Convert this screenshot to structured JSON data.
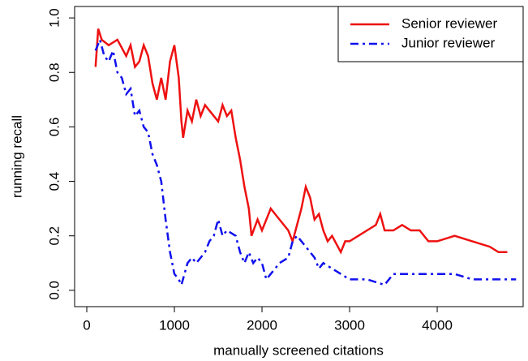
{
  "chart_data": {
    "type": "line",
    "xlabel": "manually screened citations",
    "ylabel": "running recall",
    "xlim": [
      -139,
      4981
    ],
    "ylim": [
      -0.06,
      1.042
    ],
    "xticks": [
      0,
      1000,
      2000,
      3000,
      4000
    ],
    "yticks": [
      {
        "value": 0,
        "label": "0.0"
      },
      0.2,
      0.4,
      0.6,
      0.8,
      {
        "value": 1,
        "label": "1.0"
      }
    ],
    "grid": false,
    "legend": "topright",
    "series": [
      {
        "name": "Senior reviewer",
        "color": "#ee1111",
        "dash": "solid",
        "x": [
          100,
          130,
          170,
          250,
          350,
          450,
          500,
          550,
          600,
          650,
          700,
          750,
          800,
          850,
          900,
          950,
          1000,
          1050,
          1080,
          1100,
          1150,
          1200,
          1250,
          1300,
          1350,
          1400,
          1500,
          1550,
          1600,
          1650,
          1700,
          1750,
          1800,
          1850,
          1880,
          1950,
          2000,
          2050,
          2100,
          2200,
          2300,
          2350,
          2400,
          2450,
          2500,
          2550,
          2600,
          2650,
          2700,
          2750,
          2800,
          2900,
          2950,
          3000,
          3100,
          3200,
          3300,
          3350,
          3400,
          3500,
          3600,
          3700,
          3800,
          3900,
          4000,
          4200,
          4400,
          4600,
          4700,
          4800
        ],
        "values": [
          0.82,
          0.96,
          0.92,
          0.9,
          0.92,
          0.86,
          0.9,
          0.82,
          0.84,
          0.9,
          0.86,
          0.76,
          0.7,
          0.78,
          0.7,
          0.84,
          0.9,
          0.78,
          0.62,
          0.56,
          0.66,
          0.62,
          0.7,
          0.64,
          0.68,
          0.66,
          0.62,
          0.68,
          0.64,
          0.66,
          0.56,
          0.48,
          0.38,
          0.3,
          0.2,
          0.26,
          0.22,
          0.26,
          0.3,
          0.26,
          0.22,
          0.18,
          0.24,
          0.3,
          0.38,
          0.34,
          0.26,
          0.28,
          0.22,
          0.18,
          0.2,
          0.14,
          0.18,
          0.18,
          0.2,
          0.22,
          0.24,
          0.28,
          0.22,
          0.22,
          0.24,
          0.22,
          0.22,
          0.18,
          0.18,
          0.2,
          0.18,
          0.16,
          0.14,
          0.14
        ]
      },
      {
        "name": "Junior reviewer",
        "color": "#1111ee",
        "dash": "dotdash",
        "x": [
          100,
          150,
          200,
          250,
          300,
          350,
          400,
          450,
          500,
          550,
          600,
          650,
          700,
          750,
          800,
          850,
          900,
          950,
          1000,
          1050,
          1080,
          1150,
          1200,
          1250,
          1300,
          1350,
          1400,
          1450,
          1500,
          1550,
          1600,
          1700,
          1750,
          1800,
          1850,
          1900,
          1950,
          2000,
          2050,
          2100,
          2200,
          2300,
          2350,
          2400,
          2500,
          2600,
          2650,
          2700,
          2800,
          2900,
          3000,
          3200,
          3400,
          3500,
          3800,
          4000,
          4200,
          4400,
          4600,
          4900
        ],
        "values": [
          0.88,
          0.92,
          0.86,
          0.84,
          0.88,
          0.8,
          0.78,
          0.72,
          0.74,
          0.64,
          0.66,
          0.6,
          0.58,
          0.5,
          0.46,
          0.4,
          0.26,
          0.14,
          0.06,
          0.04,
          0.02,
          0.1,
          0.12,
          0.1,
          0.12,
          0.14,
          0.18,
          0.2,
          0.26,
          0.2,
          0.22,
          0.2,
          0.14,
          0.1,
          0.14,
          0.1,
          0.12,
          0.1,
          0.04,
          0.06,
          0.1,
          0.12,
          0.18,
          0.2,
          0.16,
          0.12,
          0.08,
          0.1,
          0.08,
          0.06,
          0.04,
          0.04,
          0.02,
          0.06,
          0.06,
          0.06,
          0.06,
          0.04,
          0.04,
          0.04
        ]
      }
    ]
  }
}
